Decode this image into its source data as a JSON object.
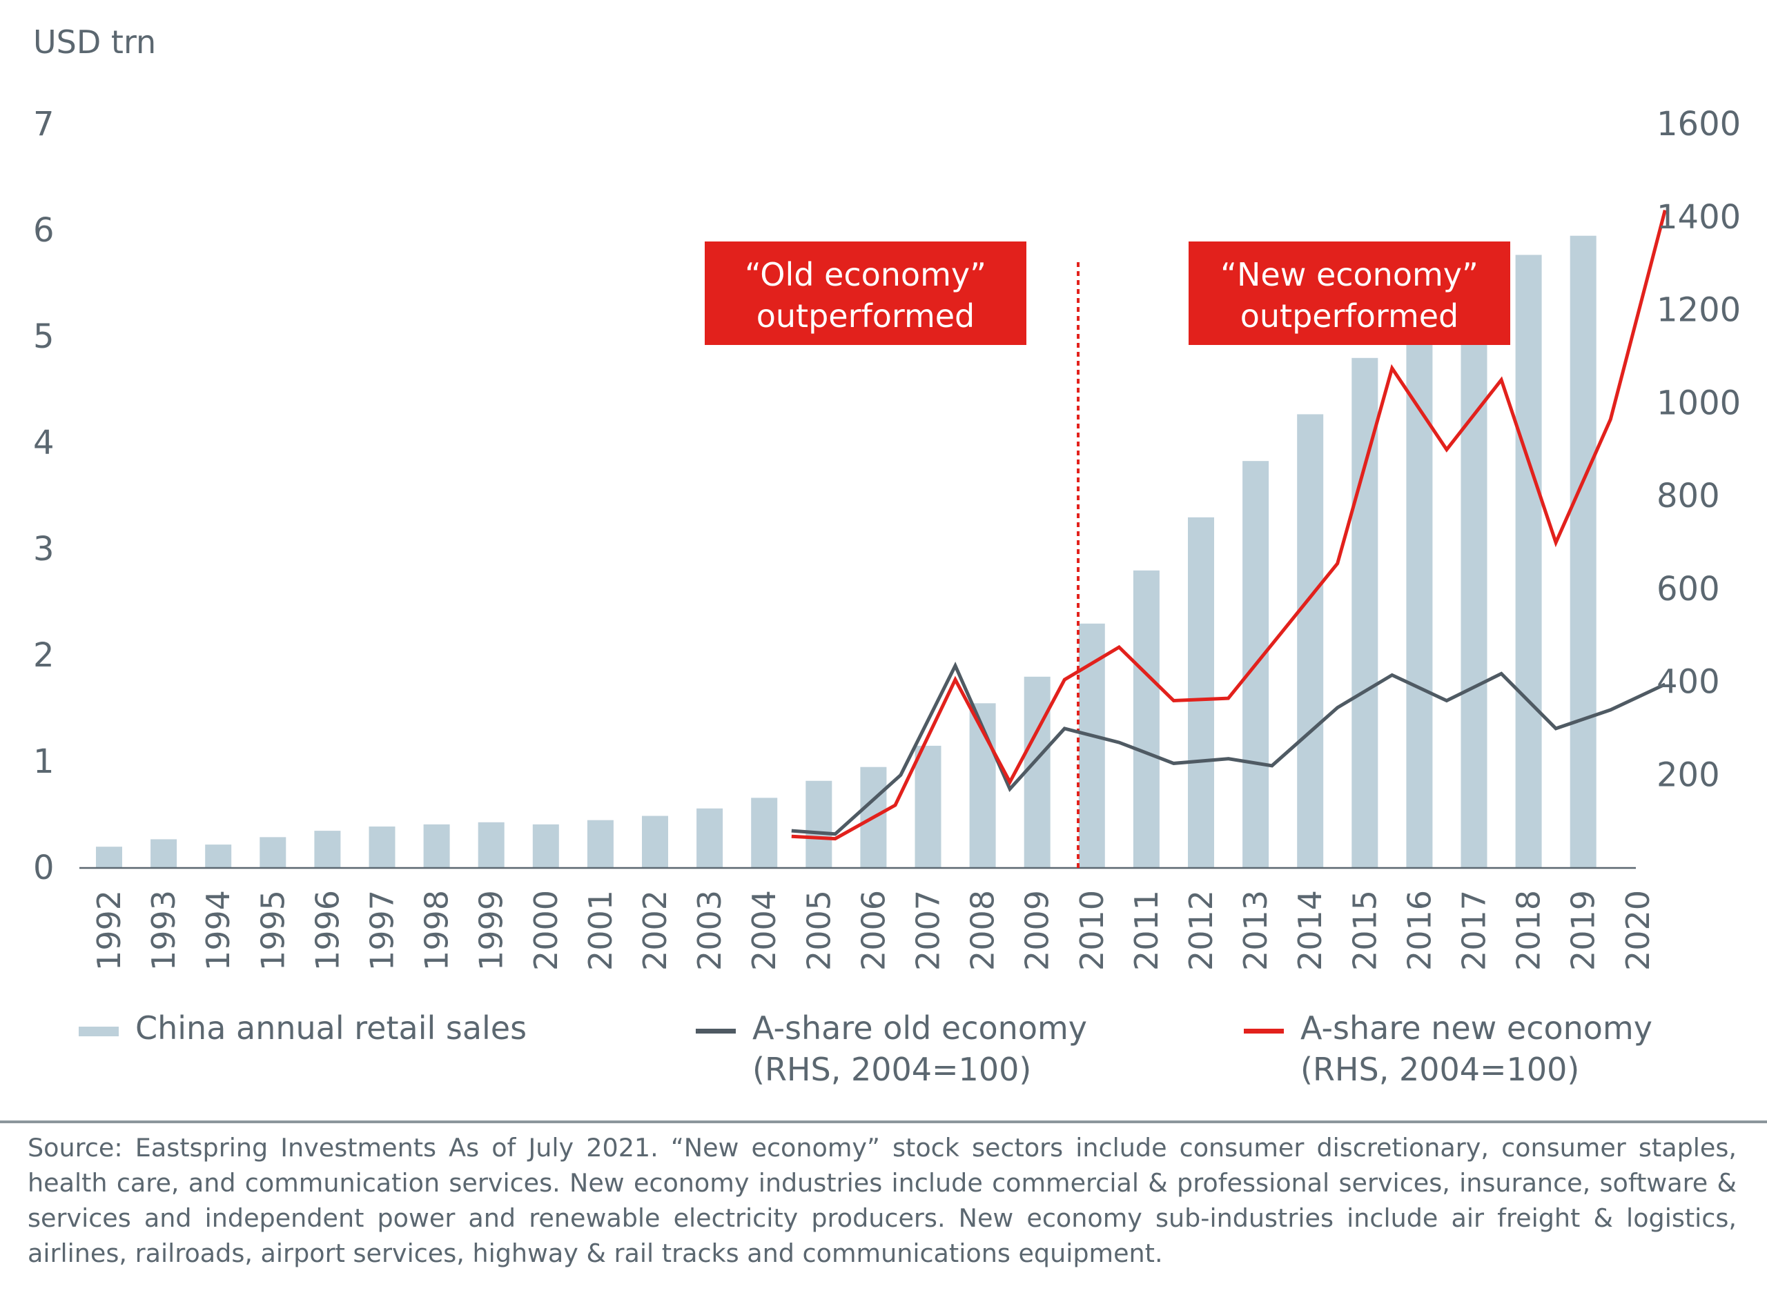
{
  "chart_data": {
    "type": "bar",
    "y_unit_label": "USD trn",
    "categories": [
      "1992",
      "1993",
      "1994",
      "1995",
      "1996",
      "1997",
      "1998",
      "1999",
      "2000",
      "2001",
      "2002",
      "2003",
      "2004",
      "2005",
      "2006",
      "2007",
      "2008",
      "2009",
      "2010",
      "2011",
      "2012",
      "2013",
      "2014",
      "2015",
      "2016",
      "2017",
      "2018",
      "2019",
      "2020"
    ],
    "left_axis": {
      "ylim": [
        0,
        7
      ],
      "ticks": [
        0,
        1,
        2,
        3,
        4,
        5,
        6,
        7
      ]
    },
    "right_axis": {
      "ylim": [
        0,
        1600
      ],
      "ticks": [
        200,
        400,
        600,
        800,
        1000,
        1200,
        1400,
        1600
      ]
    },
    "series": [
      {
        "name": "China annual retail sales",
        "type": "bar",
        "axis": "left",
        "color": "#bdd0da",
        "values": [
          0.2,
          0.27,
          0.22,
          0.29,
          0.35,
          0.39,
          0.41,
          0.43,
          0.41,
          0.45,
          0.49,
          0.56,
          0.66,
          0.82,
          0.95,
          1.15,
          1.55,
          1.8,
          2.3,
          2.8,
          3.3,
          3.83,
          4.27,
          4.8,
          5.0,
          5.3,
          5.77,
          5.95,
          null
        ]
      },
      {
        "name": "A-share old economy",
        "name_line2": "(RHS, 2004=100)",
        "type": "line",
        "axis": "right",
        "color": "#4f5a63",
        "points": [
          [
            2004.5,
            80
          ],
          [
            2005.3,
            73
          ],
          [
            2006.5,
            200
          ],
          [
            2007.5,
            435
          ],
          [
            2008.5,
            170
          ],
          [
            2009.5,
            300
          ],
          [
            2010.5,
            270
          ],
          [
            2011.5,
            225
          ],
          [
            2012.5,
            235
          ],
          [
            2013.3,
            220
          ],
          [
            2014.5,
            345
          ],
          [
            2015.5,
            415
          ],
          [
            2016.5,
            360
          ],
          [
            2017.5,
            418
          ],
          [
            2018.5,
            300
          ],
          [
            2019.5,
            340
          ],
          [
            2020.5,
            395
          ]
        ]
      },
      {
        "name": "A-share new economy",
        "name_line2": "(RHS, 2004=100)",
        "type": "line",
        "axis": "right",
        "color": "#e2211c",
        "points": [
          [
            2004.5,
            68
          ],
          [
            2005.3,
            63
          ],
          [
            2006.4,
            135
          ],
          [
            2007.5,
            405
          ],
          [
            2008.5,
            185
          ],
          [
            2009.5,
            405
          ],
          [
            2010.5,
            475
          ],
          [
            2011.5,
            360
          ],
          [
            2012.5,
            365
          ],
          [
            2013.5,
            510
          ],
          [
            2014.5,
            655
          ],
          [
            2015.5,
            1075
          ],
          [
            2016.5,
            900
          ],
          [
            2017.5,
            1050
          ],
          [
            2018.5,
            700
          ],
          [
            2019.5,
            965
          ],
          [
            2020.5,
            1415
          ]
        ]
      }
    ],
    "divider_at": 2009.75,
    "annotations": [
      {
        "line1": "“Old economy”",
        "line2": "outperformed"
      },
      {
        "line1": "“New economy”",
        "line2": "outperformed"
      }
    ],
    "legend_placement": "bottom"
  },
  "source_note": "Source: Eastspring Investments As of July 2021. “New economy” stock sectors include consumer discretionary, consumer staples, health care, and communication services. New economy industries include commercial & professional services, insurance, software & services and independent power and renewable electricity producers. New economy sub-industries include air freight & logistics, airlines, railroads, airport services, highway & rail tracks and communications equipment."
}
